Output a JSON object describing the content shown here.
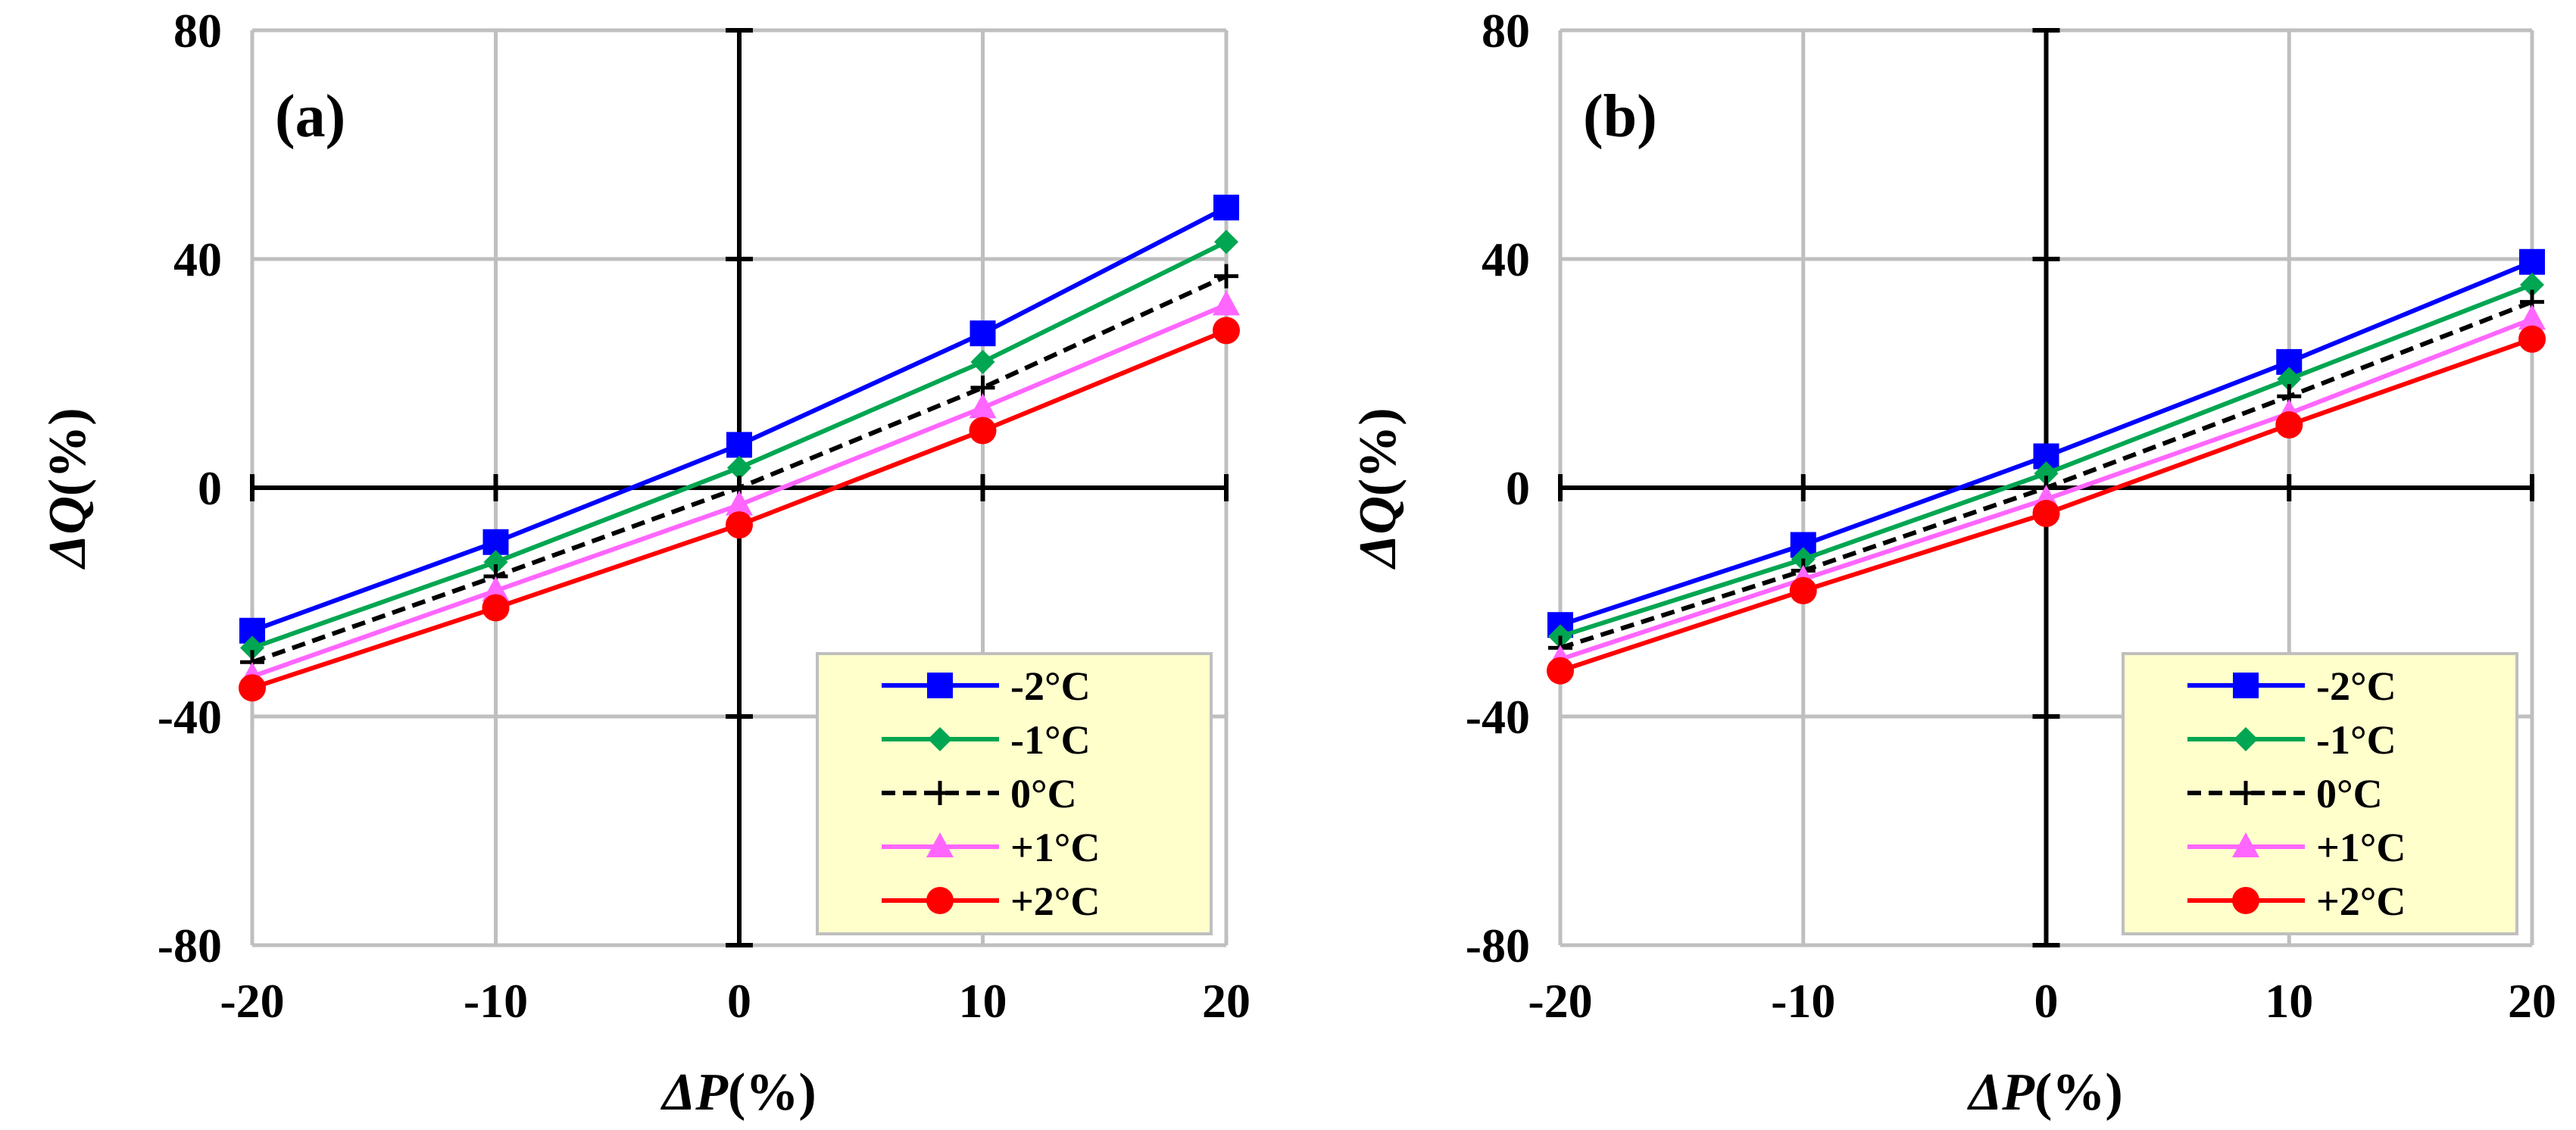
{
  "chart_data": [
    {
      "type": "line",
      "panel_label": "(a)",
      "xlabel_symbol": "ΔP",
      "xlabel_unit": "(%)",
      "ylabel_symbol": "ΔQ",
      "ylabel_unit": "(%)",
      "x": [
        -20,
        -10,
        0,
        10,
        20
      ],
      "xlim": [
        -20,
        20
      ],
      "ylim": [
        -80,
        80
      ],
      "xticks": [
        "-20",
        "-10",
        "0",
        "10",
        "20"
      ],
      "yticks": [
        "-80",
        "-40",
        "0",
        "40",
        "80"
      ],
      "xticks_values": [
        -20,
        -10,
        0,
        10,
        20
      ],
      "yticks_values": [
        -80,
        -40,
        0,
        40,
        80
      ],
      "grid": true,
      "legend_position": "bottom-right",
      "legend_background": "#ffffcc",
      "series": [
        {
          "name": "-2°C",
          "color": "#0000ff",
          "marker": "square",
          "dash": "solid",
          "values": [
            -25,
            -9.5,
            7.5,
            27,
            49
          ]
        },
        {
          "name": "-1°C",
          "color": "#00a651",
          "marker": "diamond",
          "dash": "solid",
          "values": [
            -28,
            -13,
            3.5,
            22,
            43
          ]
        },
        {
          "name": "0°C",
          "color": "#000000",
          "marker": "plus",
          "dash": "dashed",
          "values": [
            -30.5,
            -15.5,
            0,
            17.5,
            37
          ]
        },
        {
          "name": "+1°C",
          "color": "#ff66ff",
          "marker": "triangle",
          "dash": "solid",
          "values": [
            -33,
            -18,
            -3,
            14,
            32
          ]
        },
        {
          "name": "+2°C",
          "color": "#ff0000",
          "marker": "circle",
          "dash": "solid",
          "values": [
            -35,
            -21,
            -6.5,
            10,
            27.5
          ]
        }
      ]
    },
    {
      "type": "line",
      "panel_label": "(b)",
      "xlabel_symbol": "ΔP",
      "xlabel_unit": "(%)",
      "ylabel_symbol": "ΔQ",
      "ylabel_unit": "(%)",
      "x": [
        -20,
        -10,
        0,
        10,
        20
      ],
      "xlim": [
        -20,
        20
      ],
      "ylim": [
        -80,
        80
      ],
      "xticks": [
        "-20",
        "-10",
        "0",
        "10",
        "20"
      ],
      "yticks": [
        "-80",
        "-40",
        "0",
        "40",
        "80"
      ],
      "xticks_values": [
        -20,
        -10,
        0,
        10,
        20
      ],
      "yticks_values": [
        -80,
        -40,
        0,
        40,
        80
      ],
      "grid": true,
      "legend_position": "bottom-right",
      "legend_background": "#ffffcc",
      "series": [
        {
          "name": "-2°C",
          "color": "#0000ff",
          "marker": "square",
          "dash": "solid",
          "values": [
            -24,
            -10,
            5.5,
            22,
            39.5
          ]
        },
        {
          "name": "-1°C",
          "color": "#00a651",
          "marker": "diamond",
          "dash": "solid",
          "values": [
            -26,
            -12.5,
            2.5,
            19,
            35.5
          ]
        },
        {
          "name": "0°C",
          "color": "#000000",
          "marker": "plus",
          "dash": "dashed",
          "values": [
            -28,
            -14.5,
            0,
            16,
            32.5
          ]
        },
        {
          "name": "+1°C",
          "color": "#ff66ff",
          "marker": "triangle",
          "dash": "solid",
          "values": [
            -30,
            -16,
            -2,
            13,
            29.5
          ]
        },
        {
          "name": "+2°C",
          "color": "#ff0000",
          "marker": "circle",
          "dash": "solid",
          "values": [
            -32,
            -18,
            -4.5,
            11,
            26
          ]
        }
      ]
    }
  ]
}
